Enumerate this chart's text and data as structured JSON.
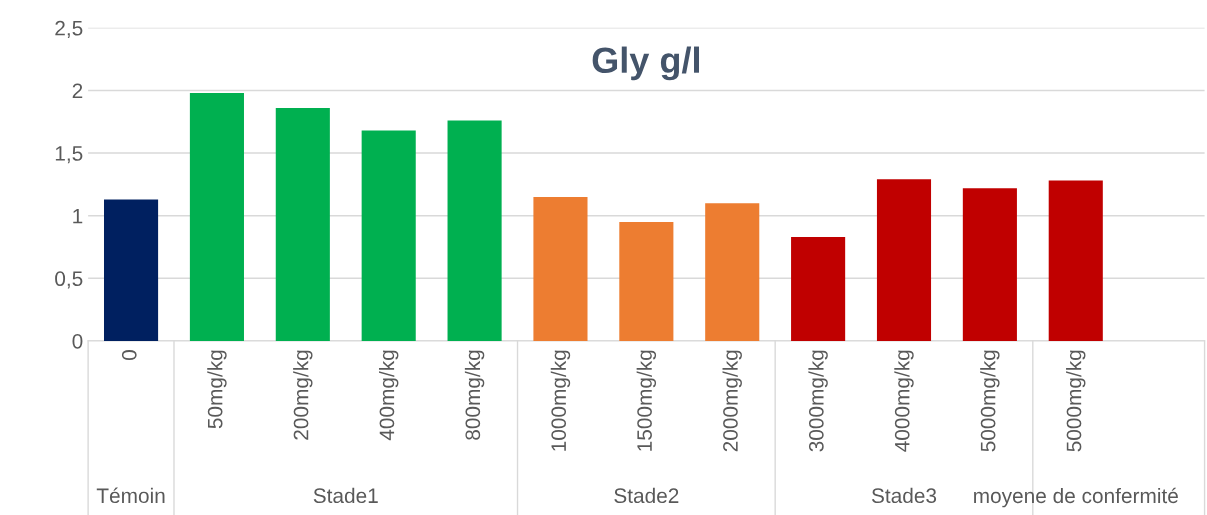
{
  "chart_data": {
    "type": "bar",
    "title": "Gly g/l",
    "categories": [
      "0",
      "50mg/kg",
      "200mg/kg",
      "400mg/kg",
      "800mg/kg",
      "1000mg/kg",
      "1500mg/kg",
      "2000mg/kg",
      "3000mg/kg",
      "4000mg/kg",
      "5000mg/kg",
      "5000mg/kg",
      null
    ],
    "values": [
      1.13,
      1.98,
      1.86,
      1.68,
      1.76,
      1.15,
      0.95,
      1.1,
      0.83,
      1.29,
      1.22,
      1.28,
      null
    ],
    "colors": [
      "#002060",
      "#00b050",
      "#00b050",
      "#00b050",
      "#00b050",
      "#ed7d31",
      "#ed7d31",
      "#ed7d31",
      "#c00000",
      "#c00000",
      "#c00000",
      "#c00000",
      "#c00000"
    ],
    "ylim": [
      0,
      2.5
    ],
    "yticks": [
      0,
      {
        "value": 0.5,
        "label": "0,5"
      },
      1,
      {
        "value": 1.5,
        "label": "1,5"
      },
      2,
      {
        "value": 2.5,
        "label": "2,5"
      }
    ],
    "grid": "y",
    "annotations": [
      "Témoin",
      "Stade1",
      "Stade2",
      "Stade3",
      "moyene de confermité"
    ]
  }
}
